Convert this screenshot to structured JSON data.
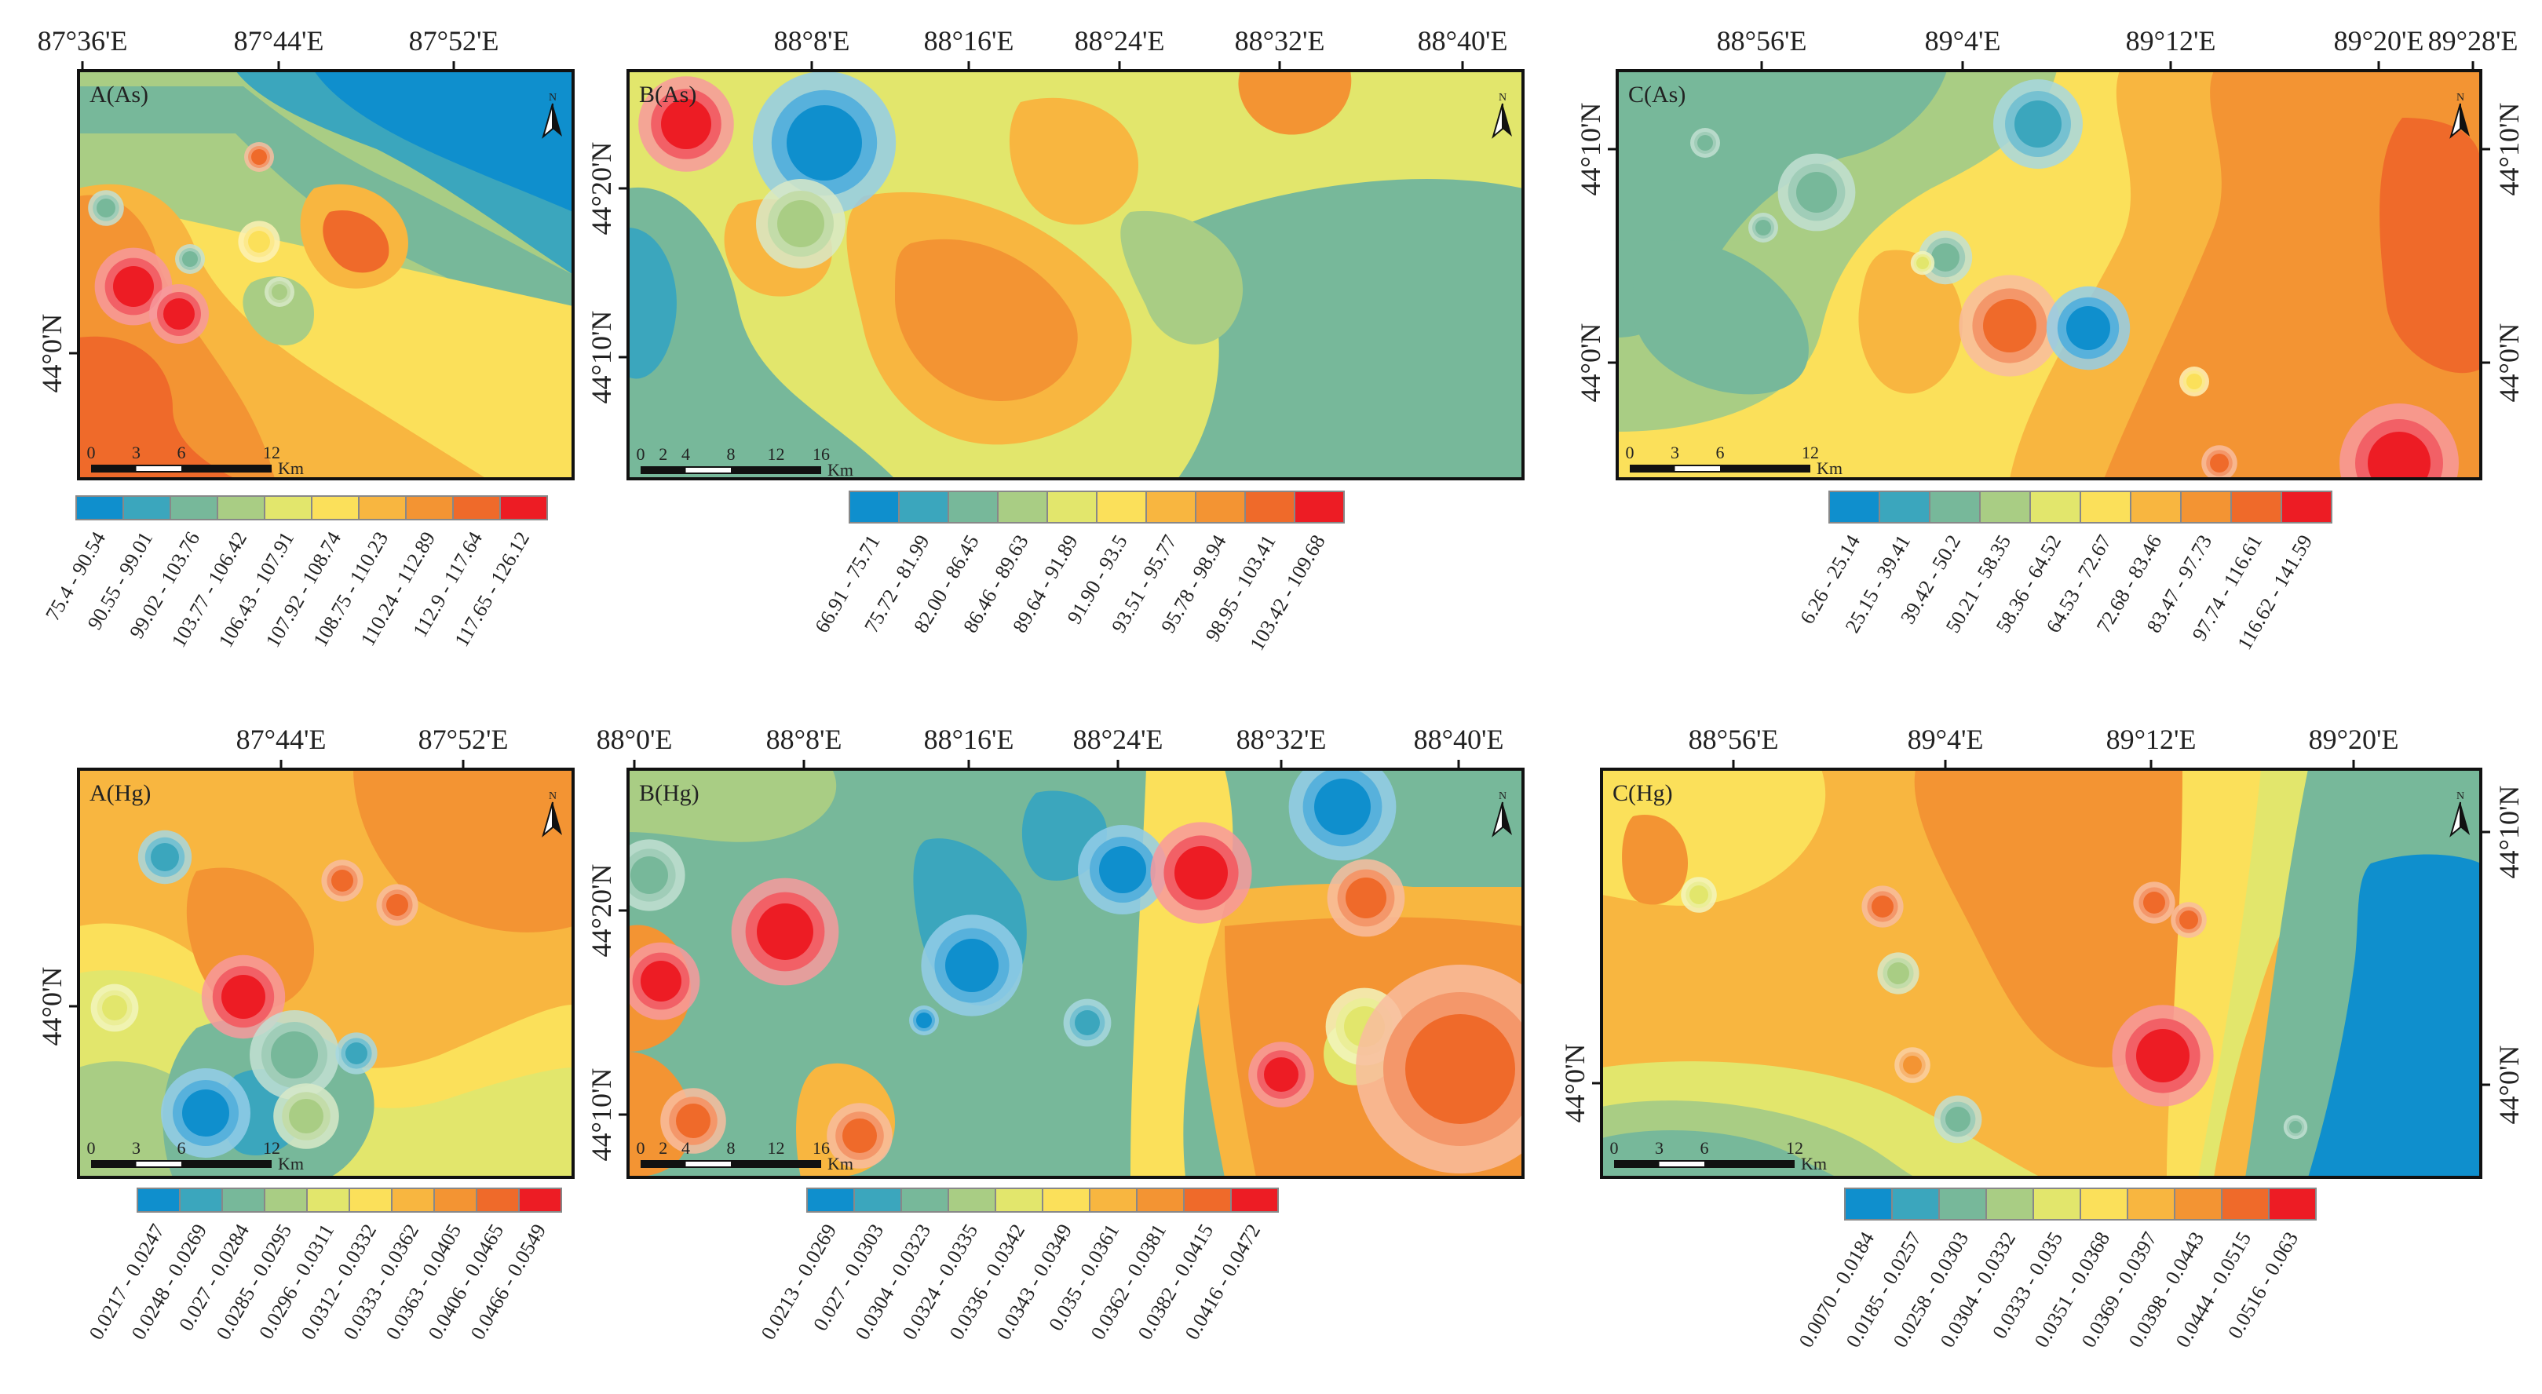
{
  "palette": [
    "#0f8fcd",
    "#3ba6bd",
    "#77b89a",
    "#a9cd84",
    "#e2e66c",
    "#fbe05a",
    "#f8b640",
    "#f39433",
    "#ef6a2a",
    "#ed1c24"
  ],
  "panels": [
    {
      "id": "A-As",
      "title": "A(As)",
      "top_labels": [
        "87°36'E",
        "87°44'E",
        "87°52'E"
      ],
      "left_labels": [
        "44°0'N"
      ],
      "right_labels": [],
      "scale_labels": [
        "0",
        "3",
        "6",
        "12"
      ],
      "scale_unit": "Km",
      "north_label": "N",
      "legend": [
        "75.4 - 90.54",
        "90.55 - 99.01",
        "99.02 - 103.76",
        "103.77 - 106.42",
        "106.43 - 107.91",
        "107.92 - 108.74",
        "108.75 - 110.23",
        "110.24 - 112.89",
        "112.9 - 117.64",
        "117.65 - 126.12"
      ]
    },
    {
      "id": "B-As",
      "title": "B(As)",
      "top_labels": [
        "88°8'E",
        "88°16'E",
        "88°24'E",
        "88°32'E",
        "88°40'E"
      ],
      "left_labels": [
        "44°20'N",
        "44°10'N"
      ],
      "right_labels": [],
      "scale_labels": [
        "0",
        "2",
        "4",
        "8",
        "12",
        "16"
      ],
      "scale_unit": "Km",
      "north_label": "N",
      "legend": [
        "66.91 - 75.71",
        "75.72 - 81.99",
        "82.00 - 86.45",
        "86.46 - 89.63",
        "89.64 - 91.89",
        "91.90 - 93.5",
        "93.51 - 95.77",
        "95.78 - 98.94",
        "98.95 - 103.41",
        "103.42 - 109.68"
      ]
    },
    {
      "id": "C-As",
      "title": "C(As)",
      "top_labels": [
        "88°56'E",
        "89°4'E",
        "89°12'E",
        "89°20'E",
        "89°28'E"
      ],
      "left_labels": [
        "44°10'N",
        "44°0'N"
      ],
      "right_labels": [
        "44°10'N",
        "44°0'N"
      ],
      "scale_labels": [
        "0",
        "3",
        "6",
        "12"
      ],
      "scale_unit": "Km",
      "north_label": "N",
      "legend": [
        "6.26 - 25.14",
        "25.15 - 39.41",
        "39.42 - 50.2",
        "50.21 - 58.35",
        "58.36 - 64.52",
        "64.53 - 72.67",
        "72.68 - 83.46",
        "83.47 - 97.73",
        "97.74 - 116.61",
        "116.62 - 141.59"
      ]
    },
    {
      "id": "A-Hg",
      "title": "A(Hg)",
      "top_labels": [
        "87°44'E",
        "87°52'E"
      ],
      "left_labels": [
        "44°0'N"
      ],
      "right_labels": [],
      "scale_labels": [
        "0",
        "3",
        "6",
        "12"
      ],
      "scale_unit": "Km",
      "north_label": "N",
      "legend": [
        "0.0217 - 0.0247",
        "0.0248 - 0.0269",
        "0.027 - 0.0284",
        "0.0285 - 0.0295",
        "0.0296 - 0.0311",
        "0.0312 - 0.0332",
        "0.0333 - 0.0362",
        "0.0363 - 0.0405",
        "0.0406 - 0.0465",
        "0.0466 - 0.0549"
      ]
    },
    {
      "id": "B-Hg",
      "title": "B(Hg)",
      "top_labels": [
        "88°0'E",
        "88°8'E",
        "88°16'E",
        "88°24'E",
        "88°32'E",
        "88°40'E"
      ],
      "left_labels": [
        "44°20'N",
        "44°10'N"
      ],
      "right_labels": [],
      "scale_labels": [
        "0",
        "2",
        "4",
        "8",
        "12",
        "16"
      ],
      "scale_unit": "Km",
      "north_label": "N",
      "legend": [
        "0.0213 - 0.0269",
        "0.027 - 0.0303",
        "0.0304 - 0.0323",
        "0.0324 - 0.0335",
        "0.0336 - 0.0342",
        "0.0343 - 0.0349",
        "0.035 - 0.0361",
        "0.0362 - 0.0381",
        "0.0382 - 0.0415",
        "0.0416 - 0.0472"
      ]
    },
    {
      "id": "C-Hg",
      "title": "C(Hg)",
      "top_labels": [
        "88°56'E",
        "89°4'E",
        "89°12'E",
        "89°20'E"
      ],
      "left_labels": [
        "44°0'N"
      ],
      "right_labels": [
        "44°10'N",
        "44°0'N"
      ],
      "scale_labels": [
        "0",
        "3",
        "6",
        "12"
      ],
      "scale_unit": "Km",
      "north_label": "N",
      "legend": [
        "0.0070 - 0.0184",
        "0.0185 - 0.0257",
        "0.0258 - 0.0303",
        "0.0304 - 0.0332",
        "0.0333 - 0.035",
        "0.0351 - 0.0368",
        "0.0369 - 0.0397",
        "0.0398 - 0.0443",
        "0.0444 - 0.0515",
        "0.0516 - 0.063"
      ]
    }
  ]
}
